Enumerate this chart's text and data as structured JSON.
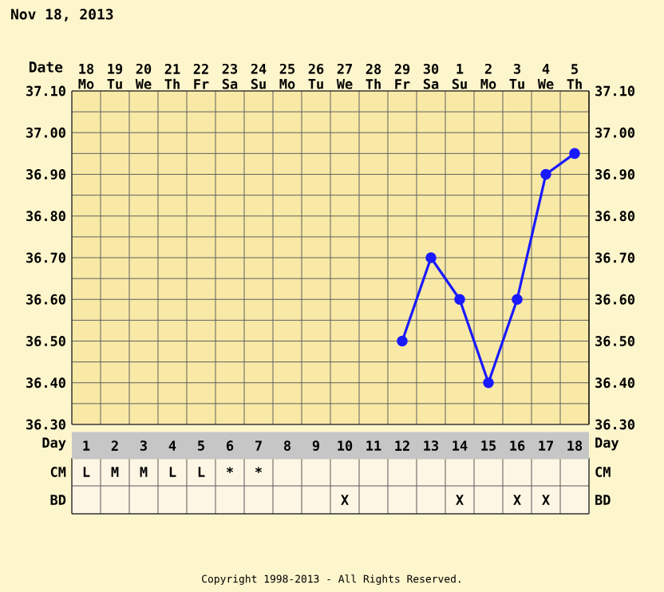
{
  "chart_data": [
    {
      "type": "line",
      "title": "Nov 18, 2013",
      "xlabel": "Date",
      "categories": [
        "18 Mo",
        "19 Tu",
        "20 We",
        "21 Th",
        "22 Fr",
        "23 Sa",
        "24 Su",
        "25 Mo",
        "26 Tu",
        "27 We",
        "28 Th",
        "29 Fr",
        "30 Sa",
        "1 Su",
        "2 Mo",
        "3 Tu",
        "4 We",
        "5 Th"
      ],
      "series": [
        {
          "color": "#1a1aff",
          "values": [
            null,
            null,
            null,
            null,
            null,
            null,
            null,
            null,
            null,
            null,
            null,
            36.5,
            36.7,
            36.6,
            36.4,
            36.6,
            36.9,
            36.95
          ]
        }
      ],
      "ylim": [
        36.3,
        37.1
      ],
      "yticks": [
        {
          "value": 36.3,
          "label": "36.30"
        },
        {
          "value": 36.4,
          "label": "36.40"
        },
        {
          "value": 36.5,
          "label": "36.50"
        },
        {
          "value": 36.6,
          "label": "36.60"
        },
        {
          "value": 36.7,
          "label": "36.70"
        },
        {
          "value": 36.8,
          "label": "36.80"
        },
        {
          "value": 36.9,
          "label": "36.90"
        },
        {
          "value": 37.0,
          "label": "37.00"
        },
        {
          "value": 37.1,
          "label": "37.10"
        }
      ],
      "y2lim": [
        36.3,
        37.1
      ],
      "y2ticks": [
        {
          "value": 36.3,
          "label": "36.30"
        },
        {
          "value": 36.4,
          "label": "36.40"
        },
        {
          "value": 36.5,
          "label": "36.50"
        },
        {
          "value": 36.6,
          "label": "36.60"
        },
        {
          "value": 36.7,
          "label": "36.70"
        },
        {
          "value": 36.8,
          "label": "36.80"
        },
        {
          "value": 36.9,
          "label": "36.90"
        },
        {
          "value": 37.0,
          "label": "37.00"
        },
        {
          "value": 37.1,
          "label": "37.10"
        }
      ],
      "grid": true,
      "marker": "circle",
      "line_style": "solid"
    },
    {
      "type": "heatmap",
      "xlabel": "Day",
      "categories": [
        "1",
        "2",
        "3",
        "4",
        "5",
        "6",
        "7",
        "8",
        "9",
        "10",
        "11",
        "12",
        "13",
        "14",
        "15",
        "16",
        "17",
        "18"
      ],
      "y_categories": [
        "CM",
        "BD"
      ],
      "y2_categories": [
        "CM",
        "BD"
      ],
      "cells": [
        [
          null,
          null,
          null,
          null,
          null,
          null,
          null,
          null,
          null,
          null,
          null,
          null,
          null,
          null,
          null,
          null,
          null,
          null
        ],
        [
          null,
          null,
          null,
          null,
          null,
          null,
          null,
          null,
          null,
          null,
          null,
          null,
          null,
          null,
          null,
          null,
          null,
          null
        ]
      ],
      "cell_labels": [
        [
          "L",
          "M",
          "M",
          "L",
          "L",
          "*",
          "*",
          null,
          null,
          null,
          null,
          null,
          null,
          null,
          null,
          null,
          null,
          null
        ],
        [
          null,
          null,
          null,
          null,
          null,
          null,
          null,
          null,
          null,
          "X",
          null,
          null,
          null,
          "X",
          null,
          "X",
          "X",
          null
        ]
      ],
      "annotations": [
        "Copyright 1998-2013 - All Rights Reserved."
      ]
    }
  ]
}
